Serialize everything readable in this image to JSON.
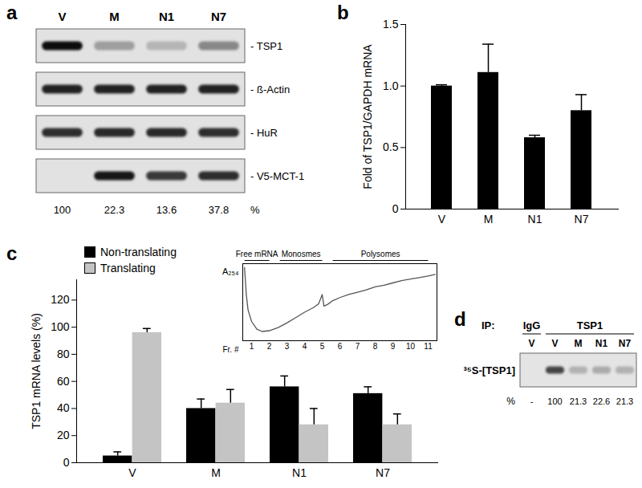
{
  "chart_data": [
    {
      "type": "blot",
      "panel": "a",
      "lanes": [
        "V",
        "M",
        "N1",
        "N7"
      ],
      "rows": [
        {
          "label": "- TSP1",
          "intensity": [
            95,
            30,
            20,
            40
          ]
        },
        {
          "label": "- ß-Actin",
          "intensity": [
            85,
            85,
            85,
            85
          ]
        },
        {
          "label": "- HuR",
          "intensity": [
            80,
            82,
            82,
            80
          ]
        },
        {
          "label": "- V5-MCT-1",
          "intensity": [
            0,
            90,
            75,
            80
          ]
        }
      ],
      "values": [
        100,
        22.3,
        13.6,
        37.8
      ],
      "unit": "%"
    },
    {
      "type": "bar",
      "panel": "b",
      "categories": [
        "V",
        "M",
        "N1",
        "N7"
      ],
      "values": [
        1.0,
        1.11,
        0.58,
        0.8
      ],
      "errors": [
        0.01,
        0.23,
        0.02,
        0.13
      ],
      "color": "#000000",
      "y_label": "Fold of TSP1/GAPDH mRNA",
      "ylim": [
        0,
        1.5
      ],
      "yticks": [
        0,
        0.5,
        {
          "value": 1,
          "label": "1.0"
        },
        1.5
      ]
    },
    {
      "type": "bar",
      "panel": "c",
      "categories": [
        "V",
        "M",
        "N1",
        "N7"
      ],
      "y_label": "TSP1 mRNA levels (%)",
      "ylim": [
        0,
        135
      ],
      "yticks": [
        0,
        20,
        40,
        60,
        80,
        100,
        120
      ],
      "legend": "top-left",
      "series": [
        {
          "name": "Non-translating",
          "color": "#000000",
          "values": [
            5,
            40,
            56,
            51
          ],
          "errors": [
            3,
            7,
            8,
            5
          ]
        },
        {
          "name": "Translating",
          "color": "#c4c4c4",
          "values": [
            96,
            44,
            28,
            28
          ],
          "errors": [
            3,
            10,
            12,
            8
          ]
        }
      ]
    },
    {
      "type": "line",
      "y_label": "A₂₅₄",
      "x_label": "Fr. #",
      "color": "#555555",
      "x": [
        0.6,
        0.7,
        0.8,
        1.0,
        1.3,
        1.6,
        2,
        2.5,
        3,
        3.5,
        4,
        4.5,
        4.8,
        5,
        5.1,
        5.3,
        5.6,
        6,
        6.5,
        7,
        7.5,
        8,
        8.5,
        9,
        9.5,
        10,
        10.5,
        11,
        11.4
      ],
      "values": [
        95,
        60,
        40,
        25,
        15,
        12,
        13,
        17,
        23,
        30,
        37,
        43,
        48,
        60,
        45,
        47,
        52,
        56,
        60,
        63,
        66,
        70,
        72,
        75,
        78,
        80,
        82,
        84,
        86
      ],
      "xlim": [
        0.5,
        11.5
      ],
      "xticks": [
        1,
        2,
        3,
        4,
        5,
        6,
        7,
        8,
        9,
        10,
        11
      ],
      "ylim": [
        0,
        100
      ],
      "yticks": [],
      "tick_labels": "x",
      "regions": [
        {
          "label": "Free mRNA",
          "from": 0.6,
          "to": 2
        },
        {
          "label": "Monosmes",
          "from": 2.6,
          "to": 5
        },
        {
          "label": "Polysomes",
          "from": 5.6,
          "to": 11
        }
      ]
    },
    {
      "type": "blot",
      "panel": "d",
      "header": "IP:",
      "groups": [
        {
          "label": "IgG",
          "lanes": [
            "V"
          ]
        },
        {
          "label": "TSP1",
          "lanes": [
            "V",
            "M",
            "N1",
            "N7"
          ]
        }
      ],
      "rows": [
        {
          "label": "³⁵S-[TSP1]",
          "intensity": [
            0,
            70,
            22,
            25,
            22
          ]
        }
      ],
      "values": [
        null,
        100,
        21.3,
        22.6,
        21.3
      ],
      "value_labels": [
        "-",
        "100",
        "21.3",
        "22.6",
        "21.3"
      ],
      "unit": "%"
    }
  ]
}
